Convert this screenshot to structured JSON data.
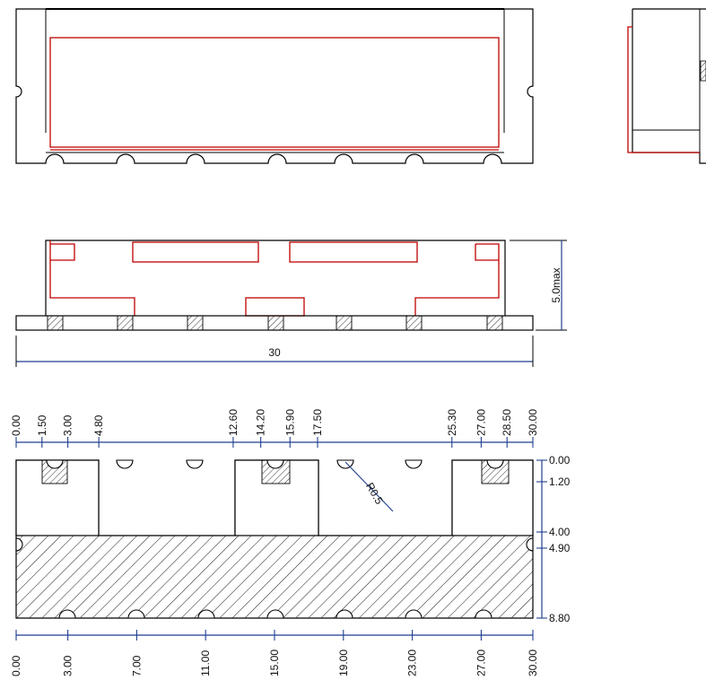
{
  "colors": {
    "outline": "#000000",
    "package_red": "#c00000",
    "dimension_blue": "#1f3f8f"
  },
  "side_view": {
    "overall_length": "30",
    "height_label": "5.0max"
  },
  "footprint": {
    "top_ticks": [
      "0.00",
      "1.50",
      "3.00",
      "4.80",
      "12.60",
      "14.20",
      "15.90",
      "17.50",
      "25.30",
      "27.00",
      "28.50",
      "30.00"
    ],
    "right_ticks": [
      "0.00",
      "1.20",
      "4.00",
      "4.90",
      "8.80"
    ],
    "bottom_ticks": [
      "0.00",
      "3.00",
      "7.00",
      "11.00",
      "15.00",
      "19.00",
      "23.00",
      "27.00",
      "30.00"
    ],
    "radius_label": "R0.5"
  }
}
